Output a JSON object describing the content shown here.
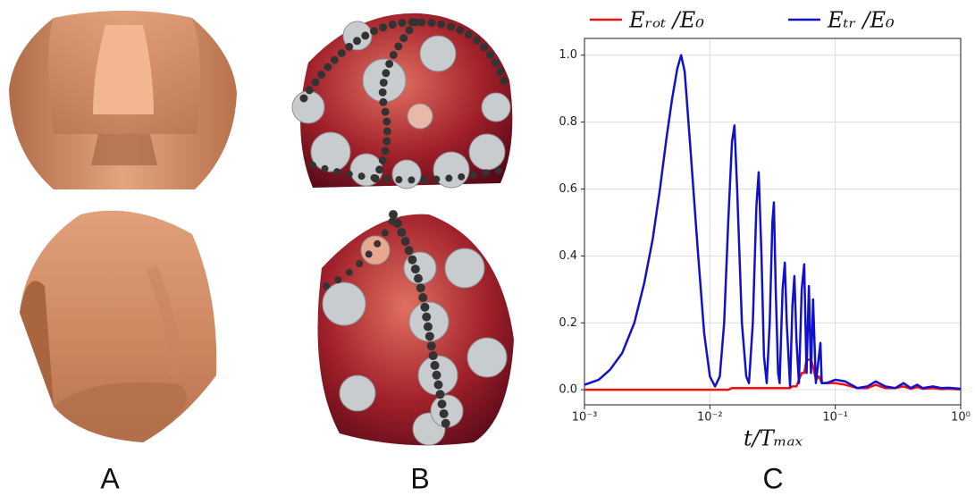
{
  "panel_labels": [
    "A",
    "B",
    "C"
  ],
  "chart_data": {
    "type": "line",
    "xlabel": "t/Tₘₐₓ",
    "xscale": "log",
    "grid": true,
    "legend": "top",
    "xlim": [
      0.001,
      1
    ],
    "ylim": [
      -0.045,
      1.05
    ],
    "xticks": [
      {
        "value": 0.001,
        "label": "10⁻³"
      },
      {
        "value": 0.01,
        "label": "10⁻²"
      },
      {
        "value": 0.1,
        "label": "10⁻¹"
      },
      {
        "value": 1,
        "label": "10⁰"
      }
    ],
    "yticks": [
      {
        "value": 0,
        "label": "0.0"
      },
      0.2,
      0.4,
      0.6,
      0.8,
      {
        "value": 1,
        "label": "1.0"
      }
    ],
    "x": [
      0.001,
      0.0013,
      0.0016,
      0.002,
      0.0025,
      0.003,
      0.0035,
      0.004,
      0.0045,
      0.005,
      0.0055,
      0.0059,
      0.0063,
      0.007,
      0.008,
      0.009,
      0.01,
      0.011,
      0.012,
      0.013,
      0.014,
      0.015,
      0.0157,
      0.0165,
      0.018,
      0.0195,
      0.0205,
      0.022,
      0.0235,
      0.0245,
      0.0258,
      0.027,
      0.0284,
      0.03,
      0.0315,
      0.0324,
      0.0335,
      0.035,
      0.036,
      0.038,
      0.0396,
      0.041,
      0.0436,
      0.0455,
      0.0472,
      0.049,
      0.0513,
      0.054,
      0.0565,
      0.059,
      0.0616,
      0.064,
      0.0665,
      0.07,
      0.074,
      0.0761,
      0.078,
      0.085,
      0.1,
      0.12,
      0.15,
      0.18,
      0.21,
      0.25,
      0.3,
      0.35,
      0.4,
      0.45,
      0.5,
      0.6,
      0.7,
      0.8,
      1.0
    ],
    "series": [
      {
        "name": "Eᵣₒₜ /E₀",
        "color": "#ee1111",
        "values": [
          0,
          0,
          0,
          0,
          0,
          0,
          0,
          0,
          0,
          0,
          0,
          0,
          0,
          0,
          0,
          0,
          0,
          0,
          0,
          0,
          0,
          0.005,
          0.005,
          0.005,
          0.005,
          0.005,
          0.005,
          0.005,
          0.005,
          0.005,
          0.005,
          0.005,
          0.005,
          0.005,
          0.005,
          0.005,
          0.005,
          0.005,
          0.005,
          0.005,
          0.005,
          0.005,
          0.005,
          0.01,
          0.01,
          0.01,
          0.03,
          0.05,
          0.05,
          0.09,
          0.09,
          0.09,
          0.07,
          0.03,
          0.04,
          0.03,
          0.02,
          0.02,
          0.02,
          0.015,
          0.005,
          0.005,
          0.015,
          0.005,
          0.005,
          0.01,
          0.003,
          0.008,
          0.003,
          0.005,
          0.002,
          0.003,
          0.001
        ]
      },
      {
        "name": "Eₜᵣ /E₀",
        "color": "#1111cc",
        "values": [
          0.015,
          0.03,
          0.06,
          0.11,
          0.2,
          0.32,
          0.45,
          0.6,
          0.75,
          0.87,
          0.96,
          1.0,
          0.95,
          0.72,
          0.42,
          0.17,
          0.04,
          0.01,
          0.04,
          0.2,
          0.5,
          0.74,
          0.79,
          0.6,
          0.2,
          0.04,
          0.02,
          0.2,
          0.55,
          0.65,
          0.4,
          0.1,
          0.02,
          0.2,
          0.5,
          0.56,
          0.3,
          0.05,
          0.02,
          0.3,
          0.38,
          0.2,
          0.01,
          0.25,
          0.34,
          0.15,
          0.02,
          0.3,
          0.375,
          0.05,
          0.31,
          0.05,
          0.27,
          0.02,
          0.1,
          0.14,
          0.02,
          0.02,
          0.03,
          0.025,
          0.005,
          0.01,
          0.025,
          0.01,
          0.005,
          0.02,
          0.005,
          0.015,
          0.005,
          0.01,
          0.005,
          0.006,
          0.003
        ]
      }
    ]
  }
}
